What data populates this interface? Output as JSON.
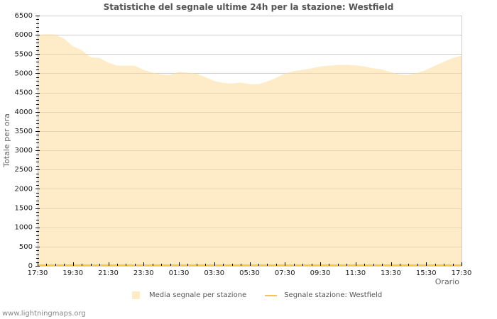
{
  "title": "Statistiche del segnale ultime 24h per la stazione: Westfield",
  "footer": "www.lightningmaps.org",
  "legend": [
    {
      "label": "Media segnale per stazione",
      "type": "area",
      "color": "#feecc8"
    },
    {
      "label": "Segnale stazione: Westfield",
      "type": "line",
      "color": "#f5c64a"
    }
  ],
  "chart_data": {
    "type": "area",
    "title": "Statistiche del segnale ultime 24h per la stazione: Westfield",
    "xlabel": "Orario",
    "ylabel": "Totale per ora",
    "ylim": [
      0,
      6500
    ],
    "yticks": [
      0,
      500,
      1000,
      1500,
      2000,
      2500,
      3000,
      3500,
      4000,
      4500,
      5000,
      5500,
      6000,
      6500
    ],
    "xtick_labels": [
      "17:30",
      "19:30",
      "21:30",
      "23:30",
      "01:30",
      "03:30",
      "05:30",
      "07:30",
      "09:30",
      "11:30",
      "13:30",
      "15:30",
      "17:30"
    ],
    "grid": true,
    "legend_position": "bottom",
    "x_interval_minutes": 30,
    "series": [
      {
        "name": "Media segnale per stazione",
        "type": "area",
        "color": "#feecc8",
        "values": [
          6000,
          6020,
          6010,
          5900,
          5700,
          5600,
          5420,
          5400,
          5280,
          5200,
          5200,
          5200,
          5090,
          5020,
          4970,
          4960,
          5040,
          5020,
          4990,
          4900,
          4800,
          4750,
          4740,
          4760,
          4720,
          4720,
          4790,
          4880,
          5000,
          5060,
          5090,
          5130,
          5180,
          5200,
          5220,
          5220,
          5210,
          5180,
          5130,
          5100,
          5030,
          4970,
          4960,
          5010,
          5090,
          5200,
          5300,
          5400,
          5460
        ]
      },
      {
        "name": "Segnale stazione: Westfield",
        "type": "line",
        "color": "#f5c64a",
        "values": [
          0,
          0,
          0,
          0,
          0,
          0,
          0,
          0,
          0,
          0,
          0,
          0,
          0,
          0,
          0,
          0,
          0,
          0,
          0,
          0,
          0,
          0,
          0,
          0,
          0,
          0,
          0,
          0,
          0,
          0,
          0,
          0,
          0,
          0,
          0,
          0,
          0,
          0,
          0,
          0,
          0,
          0,
          0,
          0,
          0,
          0,
          0,
          0,
          0
        ]
      }
    ]
  }
}
